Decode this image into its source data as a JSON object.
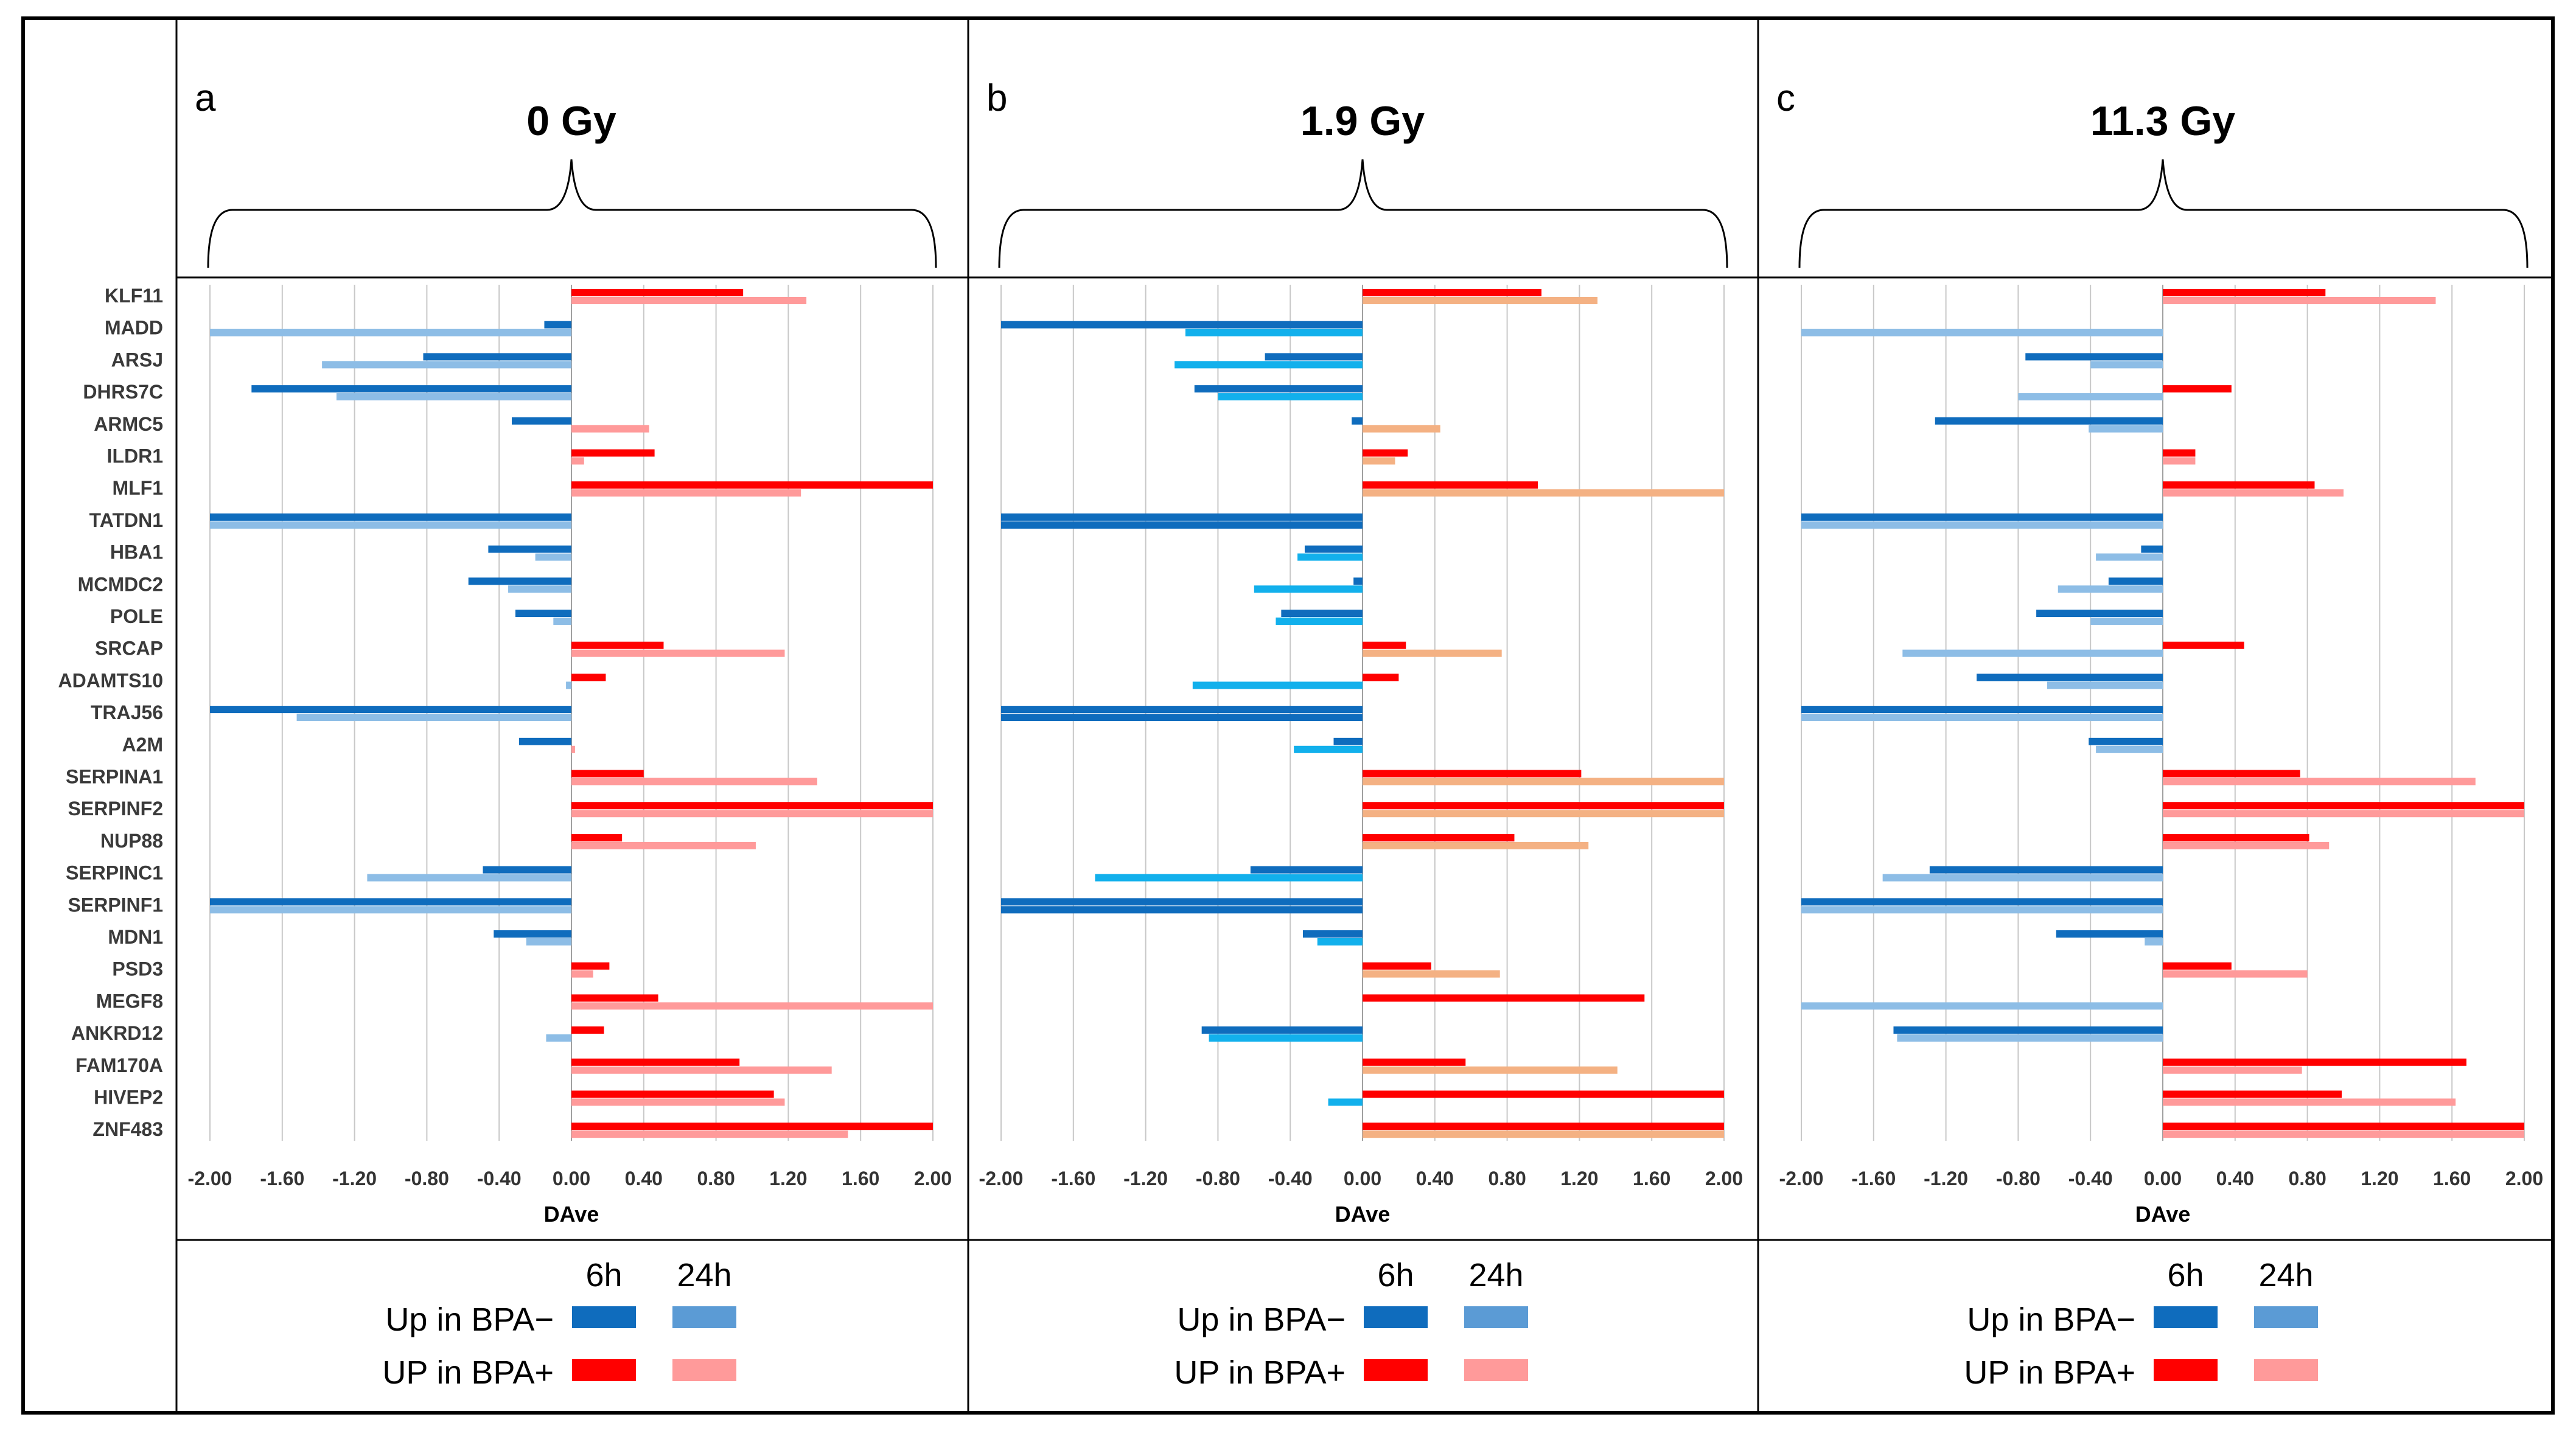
{
  "genes": [
    "KLF11",
    "MADD",
    "ARSJ",
    "DHRS7C",
    "ARMC5",
    "ILDR1",
    "MLF1",
    "TATDN1",
    "HBA1",
    "MCMDC2",
    "POLE",
    "SRCAP",
    "ADAMTS10",
    "TRAJ56",
    "A2M",
    "SERPINA1",
    "SERPINF2",
    "NUP88",
    "SERPINC1",
    "SERPINF1",
    "MDN1",
    "PSD3",
    "MEGF8",
    "ANKRD12",
    "FAM170A",
    "HIVEP2",
    "ZNF483"
  ],
  "legend": {
    "col_6h": "6h",
    "col_24h": "24h",
    "row_minus": "Up in BPA−",
    "row_plus": "UP in BPA+"
  },
  "colors": {
    "blue_6h": "#0f6cbd",
    "blue_24h": "#8dbde6",
    "blue_24h_legend": "#5b9bd5",
    "cyan_24h_b": "#12b0ec",
    "red_6h": "#ff0000",
    "pink_24h": "#ff9a9a",
    "peach_24h_b": "#f4b183",
    "grid": "#c8c8c8"
  },
  "chart_data": [
    {
      "type": "bar",
      "panel_letter": "a",
      "title": "0 Gy",
      "xlabel": "DAve",
      "xlim": [
        -2.0,
        2.0
      ],
      "xticks": [
        "-2.00",
        "-1.60",
        "-1.20",
        "-0.80",
        "-0.40",
        "0.00",
        "0.40",
        "0.80",
        "1.20",
        "1.60",
        "2.00"
      ],
      "categories": [
        "KLF11",
        "MADD",
        "ARSJ",
        "DHRS7C",
        "ARMC5",
        "ILDR1",
        "MLF1",
        "TATDN1",
        "HBA1",
        "MCMDC2",
        "POLE",
        "SRCAP",
        "ADAMTS10",
        "TRAJ56",
        "A2M",
        "SERPINA1",
        "SERPINF2",
        "NUP88",
        "SERPINC1",
        "SERPINF1",
        "MDN1",
        "PSD3",
        "MEGF8",
        "ANKRD12",
        "FAM170A",
        "HIVEP2",
        "ZNF483"
      ],
      "series": [
        {
          "name": "6h",
          "values": [
            0.95,
            -0.15,
            -0.82,
            -1.77,
            -0.33,
            0.46,
            2.0,
            -2.0,
            -0.46,
            -0.57,
            -0.31,
            0.51,
            0.19,
            -2.0,
            -0.29,
            0.4,
            2.0,
            0.28,
            -0.49,
            -2.0,
            -0.43,
            0.21,
            0.48,
            0.18,
            0.93,
            1.12,
            2.0
          ]
        },
        {
          "name": "24h",
          "values": [
            1.3,
            -2.0,
            -1.38,
            -1.3,
            0.43,
            0.07,
            1.27,
            -2.0,
            -0.2,
            -0.35,
            -0.1,
            1.18,
            -0.03,
            -1.52,
            0.02,
            1.36,
            2.0,
            1.02,
            -1.13,
            -2.0,
            -0.25,
            0.12,
            2.0,
            -0.14,
            1.44,
            1.18,
            1.53
          ]
        }
      ]
    },
    {
      "type": "bar",
      "panel_letter": "b",
      "title": "1.9 Gy",
      "xlabel": "DAve",
      "xlim": [
        -2.0,
        2.0
      ],
      "xticks": [
        "-2.00",
        "-1.60",
        "-1.20",
        "-0.80",
        "-0.40",
        "0.00",
        "0.40",
        "0.80",
        "1.20",
        "1.60",
        "2.00"
      ],
      "categories": [
        "KLF11",
        "MADD",
        "ARSJ",
        "DHRS7C",
        "ARMC5",
        "ILDR1",
        "MLF1",
        "TATDN1",
        "HBA1",
        "MCMDC2",
        "POLE",
        "SRCAP",
        "ADAMTS10",
        "TRAJ56",
        "A2M",
        "SERPINA1",
        "SERPINF2",
        "NUP88",
        "SERPINC1",
        "SERPINF1",
        "MDN1",
        "PSD3",
        "MEGF8",
        "ANKRD12",
        "FAM170A",
        "HIVEP2",
        "ZNF483"
      ],
      "series": [
        {
          "name": "6h",
          "values": [
            0.99,
            -2.0,
            -0.54,
            -0.93,
            -0.06,
            0.25,
            0.97,
            -2.0,
            -0.32,
            -0.05,
            -0.45,
            0.24,
            0.2,
            -2.0,
            -0.16,
            1.21,
            2.0,
            0.84,
            -0.62,
            -2.0,
            -0.33,
            0.38,
            1.56,
            -0.89,
            0.57,
            2.0,
            2.0
          ]
        },
        {
          "name": "24h",
          "values": [
            1.3,
            -0.98,
            -1.04,
            -0.8,
            0.43,
            0.18,
            2.0,
            -2.0,
            -0.36,
            -0.6,
            -0.48,
            0.77,
            -0.94,
            -2.0,
            -0.38,
            2.0,
            2.0,
            1.25,
            -1.48,
            -2.0,
            -0.25,
            0.76,
            0.0,
            -0.85,
            1.41,
            -0.19,
            2.0
          ]
        }
      ]
    },
    {
      "type": "bar",
      "panel_letter": "c",
      "title": "11.3 Gy",
      "xlabel": "DAve",
      "xlim": [
        -2.0,
        2.0
      ],
      "xticks": [
        "-2.00",
        "-1.60",
        "-1.20",
        "-0.80",
        "-0.40",
        "0.00",
        "0.40",
        "0.80",
        "1.20",
        "1.60",
        "2.00"
      ],
      "categories": [
        "KLF11",
        "MADD",
        "ARSJ",
        "DHRS7C",
        "ARMC5",
        "ILDR1",
        "MLF1",
        "TATDN1",
        "HBA1",
        "MCMDC2",
        "POLE",
        "SRCAP",
        "ADAMTS10",
        "TRAJ56",
        "A2M",
        "SERPINA1",
        "SERPINF2",
        "NUP88",
        "SERPINC1",
        "SERPINF1",
        "MDN1",
        "PSD3",
        "MEGF8",
        "ANKRD12",
        "FAM170A",
        "HIVEP2",
        "ZNF483"
      ],
      "series": [
        {
          "name": "6h",
          "values": [
            0.9,
            0.0,
            -0.76,
            0.38,
            -1.26,
            0.18,
            0.84,
            -2.0,
            -0.12,
            -0.3,
            -0.7,
            0.45,
            -1.03,
            -2.0,
            -0.41,
            0.76,
            2.0,
            0.81,
            -1.29,
            -2.0,
            -0.59,
            0.38,
            0.0,
            -1.49,
            1.68,
            0.99,
            2.0
          ]
        },
        {
          "name": "24h",
          "values": [
            1.51,
            -2.0,
            -0.4,
            -0.8,
            -0.41,
            0.18,
            1.0,
            -2.0,
            -0.37,
            -0.58,
            -0.4,
            -1.44,
            -0.64,
            -2.0,
            -0.37,
            1.73,
            2.0,
            0.92,
            -1.55,
            -2.0,
            -0.1,
            0.8,
            -2.0,
            -1.47,
            0.77,
            1.62,
            2.0
          ]
        }
      ]
    }
  ]
}
